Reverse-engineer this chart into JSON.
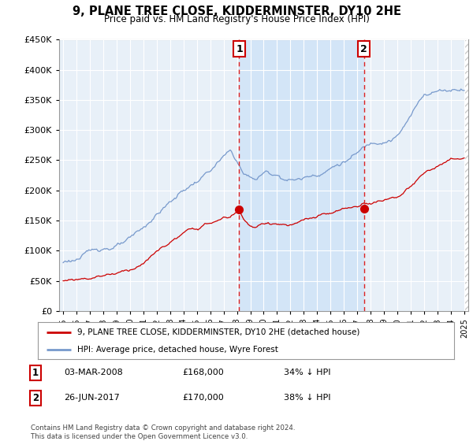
{
  "title": "9, PLANE TREE CLOSE, KIDDERMINSTER, DY10 2HE",
  "subtitle": "Price paid vs. HM Land Registry's House Price Index (HPI)",
  "legend_label_red": "9, PLANE TREE CLOSE, KIDDERMINSTER, DY10 2HE (detached house)",
  "legend_label_blue": "HPI: Average price, detached house, Wyre Forest",
  "table_rows": [
    {
      "num": "1",
      "date": "03-MAR-2008",
      "price": "£168,000",
      "pct": "34% ↓ HPI"
    },
    {
      "num": "2",
      "date": "26-JUN-2017",
      "price": "£170,000",
      "pct": "38% ↓ HPI"
    }
  ],
  "footnote": "Contains HM Land Registry data © Crown copyright and database right 2024.\nThis data is licensed under the Open Government Licence v3.0.",
  "vline1_year": 2008.17,
  "vline2_year": 2017.49,
  "sale1_price": 168000,
  "sale2_price": 170000,
  "ylim": [
    0,
    450000
  ],
  "yticks": [
    0,
    50000,
    100000,
    150000,
    200000,
    250000,
    300000,
    350000,
    400000,
    450000
  ],
  "xlim_left": 1994.7,
  "xlim_right": 2025.3,
  "red_color": "#cc0000",
  "blue_color": "#7799cc",
  "shade_color": "#d0e4f7",
  "vline_color": "#dd2222",
  "plot_bg": "#e8f0f8",
  "hatch_color": "#cccccc"
}
